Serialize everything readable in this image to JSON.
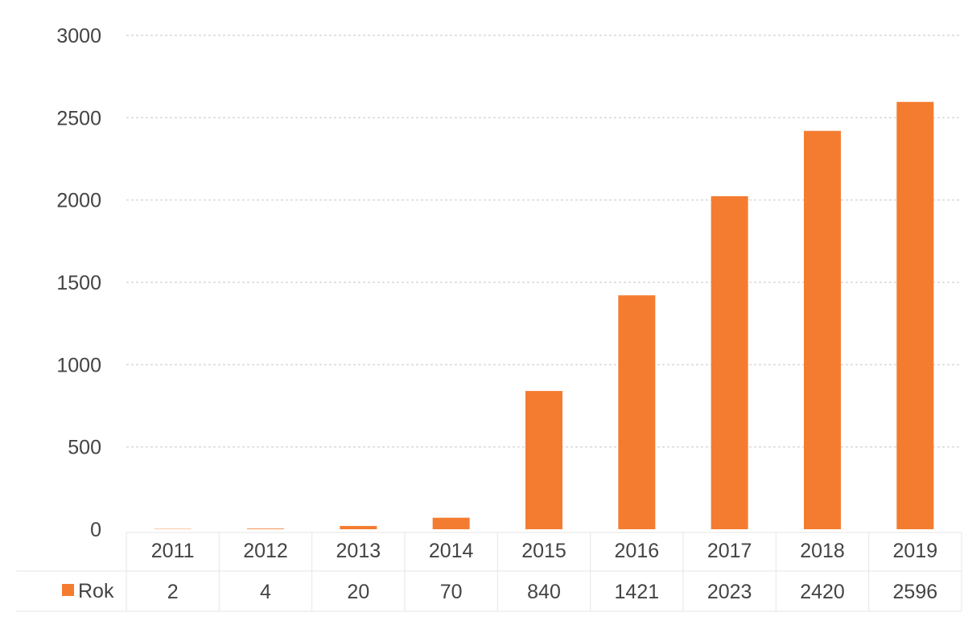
{
  "chart_data": {
    "type": "bar",
    "title": "",
    "xlabel": "",
    "ylabel": "",
    "categories": [
      "2011",
      "2012",
      "2013",
      "2014",
      "2015",
      "2016",
      "2017",
      "2018",
      "2019"
    ],
    "series": [
      {
        "name": "Rok",
        "values": [
          2,
          4,
          20,
          70,
          840,
          1421,
          2023,
          2420,
          2596
        ]
      }
    ],
    "ylim": [
      0,
      3000
    ],
    "y_ticks": [
      "0",
      "500",
      "1000",
      "1500",
      "2000",
      "2500",
      "3000"
    ],
    "grid": true,
    "data_table": true,
    "legend_position": "data-table-left",
    "colors": {
      "bar": "#F47C30",
      "grid": "#d9d9d9",
      "table_border": "#e6e6e6",
      "text": "#444444"
    }
  }
}
